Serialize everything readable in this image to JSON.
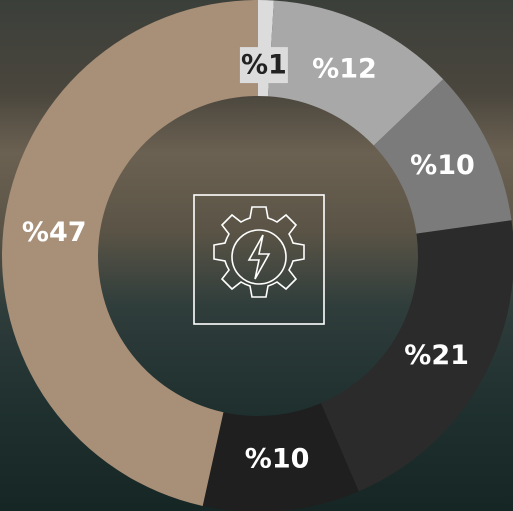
{
  "chart_data": {
    "type": "pie",
    "values": [
      1,
      12,
      10,
      21,
      10,
      47
    ],
    "value_labels": [
      "%1",
      "%12",
      "%10",
      "%21",
      "%10",
      "%47"
    ],
    "colors": [
      "#dcdcdc",
      "#a8a8a8",
      "#7b7b7b",
      "#2b2b2b",
      "#1f1f1f",
      "#a88f78"
    ]
  }
}
